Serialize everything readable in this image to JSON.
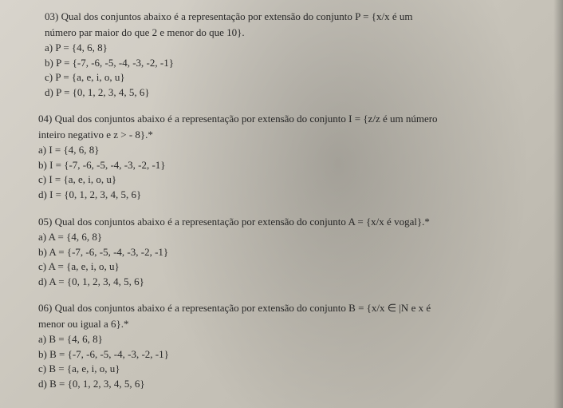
{
  "q03": {
    "stem_line1": "03) Qual dos conjuntos abaixo é a representação por extensão do conjunto P = {x/x é um",
    "stem_line2": "número par maior do que 2 e menor do que 10}.",
    "a": "a) P = {4, 6, 8}",
    "b": "b) P = {-7, -6, -5, -4, -3, -2, -1}",
    "c": "c) P = {a, e, i, o, u}",
    "d": "d) P = {0, 1, 2, 3, 4, 5, 6}"
  },
  "q04": {
    "stem_line1": "04) Qual dos conjuntos abaixo é a representação por extensão do conjunto I = {z/z é um número",
    "stem_line2": "inteiro negativo e z > - 8}.*",
    "a": "a) I = {4, 6, 8}",
    "b": "b) I = {-7, -6, -5, -4, -3, -2, -1}",
    "c": "c) I = {a, e, i, o, u}",
    "d": "d) I = {0, 1, 2, 3, 4, 5, 6}"
  },
  "q05": {
    "stem": "05) Qual dos conjuntos abaixo é a representação por extensão do conjunto A = {x/x é vogal}.*",
    "a": "a) A = {4, 6, 8}",
    "b": "b) A = {-7, -6, -5, -4, -3, -2, -1}",
    "c": "c) A = {a, e, i, o, u}",
    "d": "d) A = {0, 1, 2, 3, 4, 5, 6}"
  },
  "q06": {
    "stem_line1": "06) Qual dos conjuntos abaixo é a representação por extensão do conjunto B = {x/x ∈ |N e x é",
    "stem_line2": "menor ou igual a 6}.*",
    "a": "a) B = {4, 6, 8}",
    "b": "b) B = {-7, -6, -5, -4, -3, -2, -1}",
    "c": "c) B = {a, e, i, o, u}",
    "d": "d) B = {0, 1, 2, 3, 4, 5, 6}"
  }
}
